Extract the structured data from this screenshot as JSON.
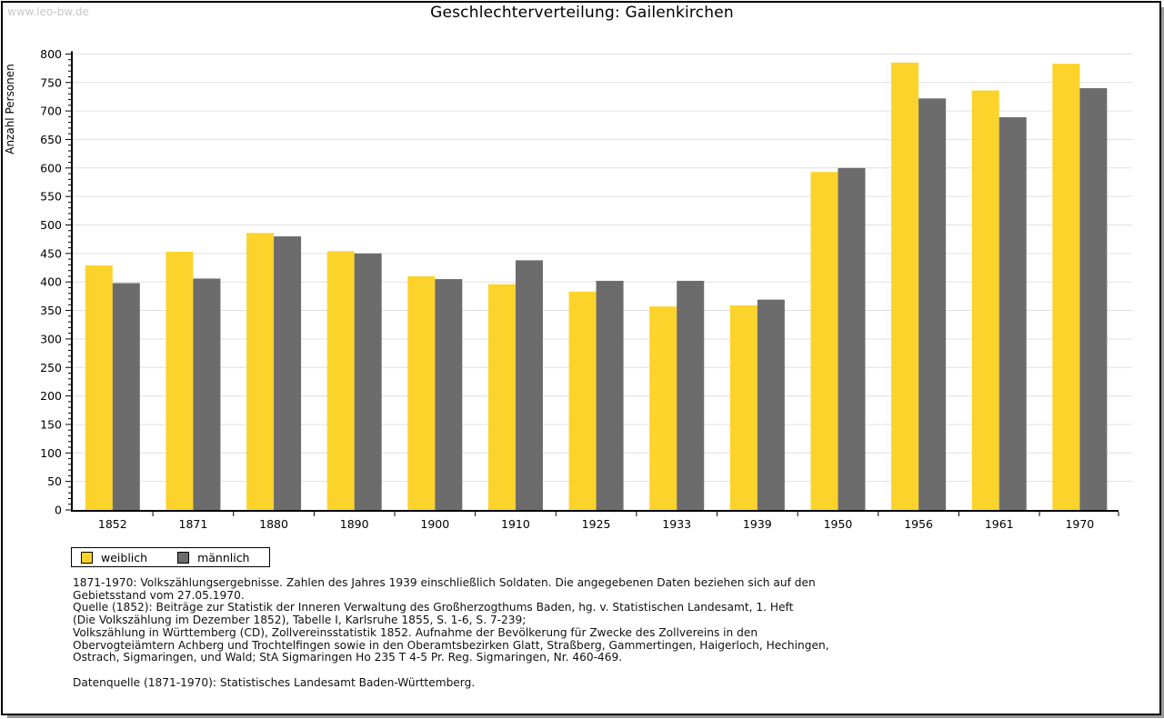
{
  "page": {
    "watermark": "www.leo-bw.de"
  },
  "chart_data": {
    "type": "bar",
    "title": "Geschlechterverteilung: Gailenkirchen",
    "ylabel": "Anzahl Personen",
    "xlabel": "",
    "ylim": [
      0,
      800
    ],
    "ytick_step": 50,
    "yminor_step": 10,
    "grid": true,
    "grid_color": "#e0e0e0",
    "legend_position": "bottom-left",
    "categories": [
      "1852",
      "1871",
      "1880",
      "1890",
      "1900",
      "1910",
      "1925",
      "1933",
      "1939",
      "1950",
      "1956",
      "1961",
      "1970"
    ],
    "series": [
      {
        "name": "weiblich",
        "color": "#FCD32B",
        "values": [
          429,
          453,
          486,
          454,
          410,
          396,
          383,
          357,
          359,
          593,
          785,
          736,
          783
        ]
      },
      {
        "name": "männlich",
        "color": "#6C6C6C",
        "values": [
          398,
          406,
          480,
          450,
          405,
          438,
          402,
          402,
          369,
          600,
          722,
          689,
          740
        ]
      }
    ]
  },
  "footer": {
    "lines": [
      "1871-1970: Volkszählungsergebnisse. Zahlen des Jahres 1939 einschließlich Soldaten. Die angegebenen Daten beziehen sich auf den",
      "Gebietsstand vom 27.05.1970.",
      "Quelle (1852): Beiträge zur Statistik der Inneren Verwaltung des Großherzogthums Baden, hg. v. Statistischen Landesamt, 1. Heft",
      "(Die Volkszählung im Dezember 1852), Tabelle I, Karlsruhe 1855, S. 1-6, S. 7-239;",
      "Volkszählung in Württemberg (CD), Zollvereinsstatistik 1852. Aufnahme der Bevölkerung für Zwecke des Zollvereins in den",
      "Obervogteiämtern Achberg und Trochtelfingen sowie in den Oberamtsbezirken Glatt, Straßberg, Gammertingen, Haigerloch, Hechingen,",
      "Ostrach, Sigmaringen, und Wald; StA Sigmaringen Ho 235 T 4-5 Pr. Reg. Sigmaringen, Nr. 460-469.",
      "Datenquelle (1871-1970): Statistisches Landesamt Baden-Württemberg."
    ]
  }
}
